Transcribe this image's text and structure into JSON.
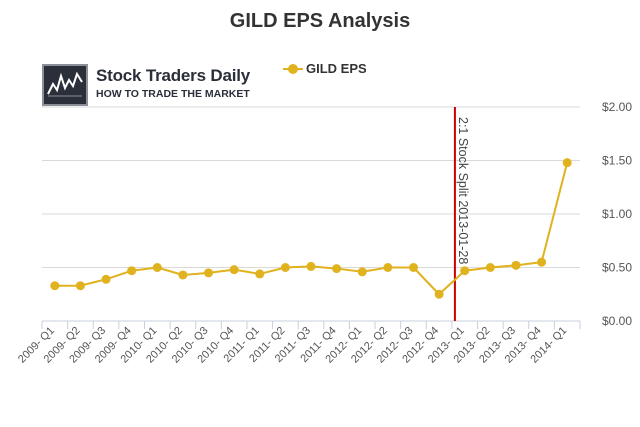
{
  "chart_data": {
    "type": "line",
    "title": "GILD EPS Analysis",
    "categories": [
      "2009- Q1",
      "2009- Q2",
      "2009- Q3",
      "2009- Q4",
      "2010- Q1",
      "2010- Q2",
      "2010- Q3",
      "2010- Q4",
      "2011- Q1",
      "2011- Q2",
      "2011- Q3",
      "2011- Q4",
      "2012- Q1",
      "2012- Q2",
      "2012- Q3",
      "2012- Q4",
      "2013- Q1",
      "2013- Q2",
      "2013- Q3",
      "2013- Q4",
      "2014- Q1"
    ],
    "series": [
      {
        "name": "GILD EPS",
        "color": "#e0b21e",
        "values": [
          0.33,
          0.33,
          0.39,
          0.47,
          0.5,
          0.43,
          0.45,
          0.48,
          0.44,
          0.5,
          0.51,
          0.49,
          0.46,
          0.5,
          0.5,
          0.25,
          0.47,
          0.5,
          0.52,
          0.55,
          1.48
        ]
      }
    ],
    "ylim": [
      0,
      2
    ],
    "yticks": [
      0,
      0.5,
      1,
      1.5,
      2
    ],
    "ytick_labels": [
      "$0.00",
      "$0.50",
      "$1.00",
      "$1.50",
      "$2.00"
    ],
    "y_axis_side": "right",
    "grid": "horizontal",
    "legend_placement": "top-center",
    "annotations": [
      {
        "type": "vertical-line",
        "between_categories": [
          "2012- Q4",
          "2013- Q1"
        ],
        "label": "2:1 Stock Split 2013-01-28",
        "color": "#cc0000"
      }
    ]
  },
  "logo": {
    "name": "Stock Traders Daily",
    "tagline": "HOW TO TRADE THE MARKET",
    "icon": "chart-logo-icon"
  }
}
